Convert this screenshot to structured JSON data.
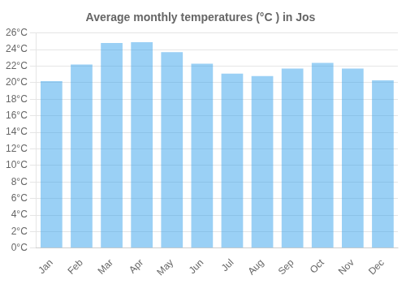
{
  "chart_data": {
    "type": "bar",
    "title": "Average monthly temperatures (°C ) in Jos",
    "categories": [
      "Jan",
      "Feb",
      "Mar",
      "Apr",
      "May",
      "Jun",
      "Jul",
      "Aug",
      "Sep",
      "Oct",
      "Nov",
      "Dec"
    ],
    "values": [
      20.2,
      22.2,
      24.8,
      24.9,
      23.7,
      22.3,
      21.1,
      20.8,
      21.7,
      22.4,
      21.7,
      20.3
    ],
    "ylim": [
      0,
      26
    ],
    "yticks": [
      {
        "value": 0,
        "label": "0°C"
      },
      {
        "value": 2,
        "label": "2°C"
      },
      {
        "value": 4,
        "label": "4°C"
      },
      {
        "value": 6,
        "label": "6°C"
      },
      {
        "value": 8,
        "label": "8°C"
      },
      {
        "value": 10,
        "label": "10°C"
      },
      {
        "value": 12,
        "label": "12°C"
      },
      {
        "value": 14,
        "label": "14°C"
      },
      {
        "value": 16,
        "label": "16°C"
      },
      {
        "value": 18,
        "label": "18°C"
      },
      {
        "value": 20,
        "label": "20°C"
      },
      {
        "value": 22,
        "label": "22°C"
      },
      {
        "value": 24,
        "label": "24°C"
      },
      {
        "value": 26,
        "label": "26°C"
      }
    ],
    "grid": true
  }
}
